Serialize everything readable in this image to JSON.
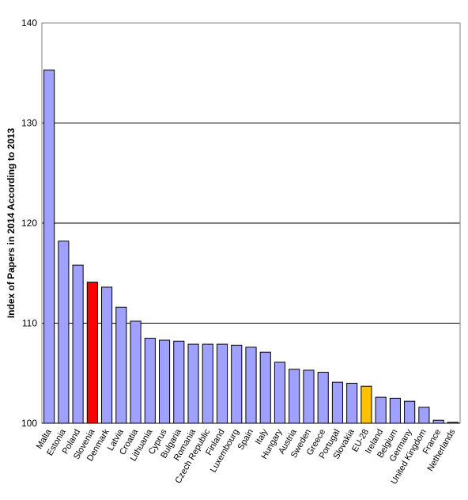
{
  "chart_data": {
    "type": "bar",
    "ylabel": "Index of Papers in 2014  According to 2013",
    "xlabel": "",
    "title": "",
    "ylim": [
      100,
      140
    ],
    "yticks": [
      100,
      110,
      120,
      130,
      140
    ],
    "grid": true,
    "categories": [
      "Malta",
      "Estonia",
      "Poland",
      "Slovenia",
      "Denmark",
      "Latvia",
      "Croatia",
      "Lithuania",
      "Cyprus",
      "Bulgaria",
      "Romania",
      "Czech Republic",
      "Finland",
      "Luxembourg",
      "Spain",
      "Italy",
      "Hungary",
      "Austria",
      "Sweden",
      "Greece",
      "Portugal",
      "Slovakia",
      "EU-28",
      "Ireland",
      "Belgium",
      "Germany",
      "United Kingdom",
      "France",
      "Netherlands"
    ],
    "values": [
      135.3,
      118.2,
      115.8,
      114.1,
      113.6,
      111.6,
      110.2,
      108.5,
      108.3,
      108.2,
      107.9,
      107.9,
      107.9,
      107.8,
      107.6,
      107.1,
      106.1,
      105.4,
      105.3,
      105.1,
      104.1,
      104.0,
      103.7,
      102.6,
      102.5,
      102.2,
      101.6,
      100.3,
      100.1
    ],
    "colors": {
      "default": "#a0a0ff",
      "highlight": "#ff0000",
      "eu": "#ffc000",
      "border": "#000000",
      "grid": "#000000"
    },
    "highlight_categories": {
      "Slovenia": "highlight",
      "EU-28": "eu"
    }
  }
}
